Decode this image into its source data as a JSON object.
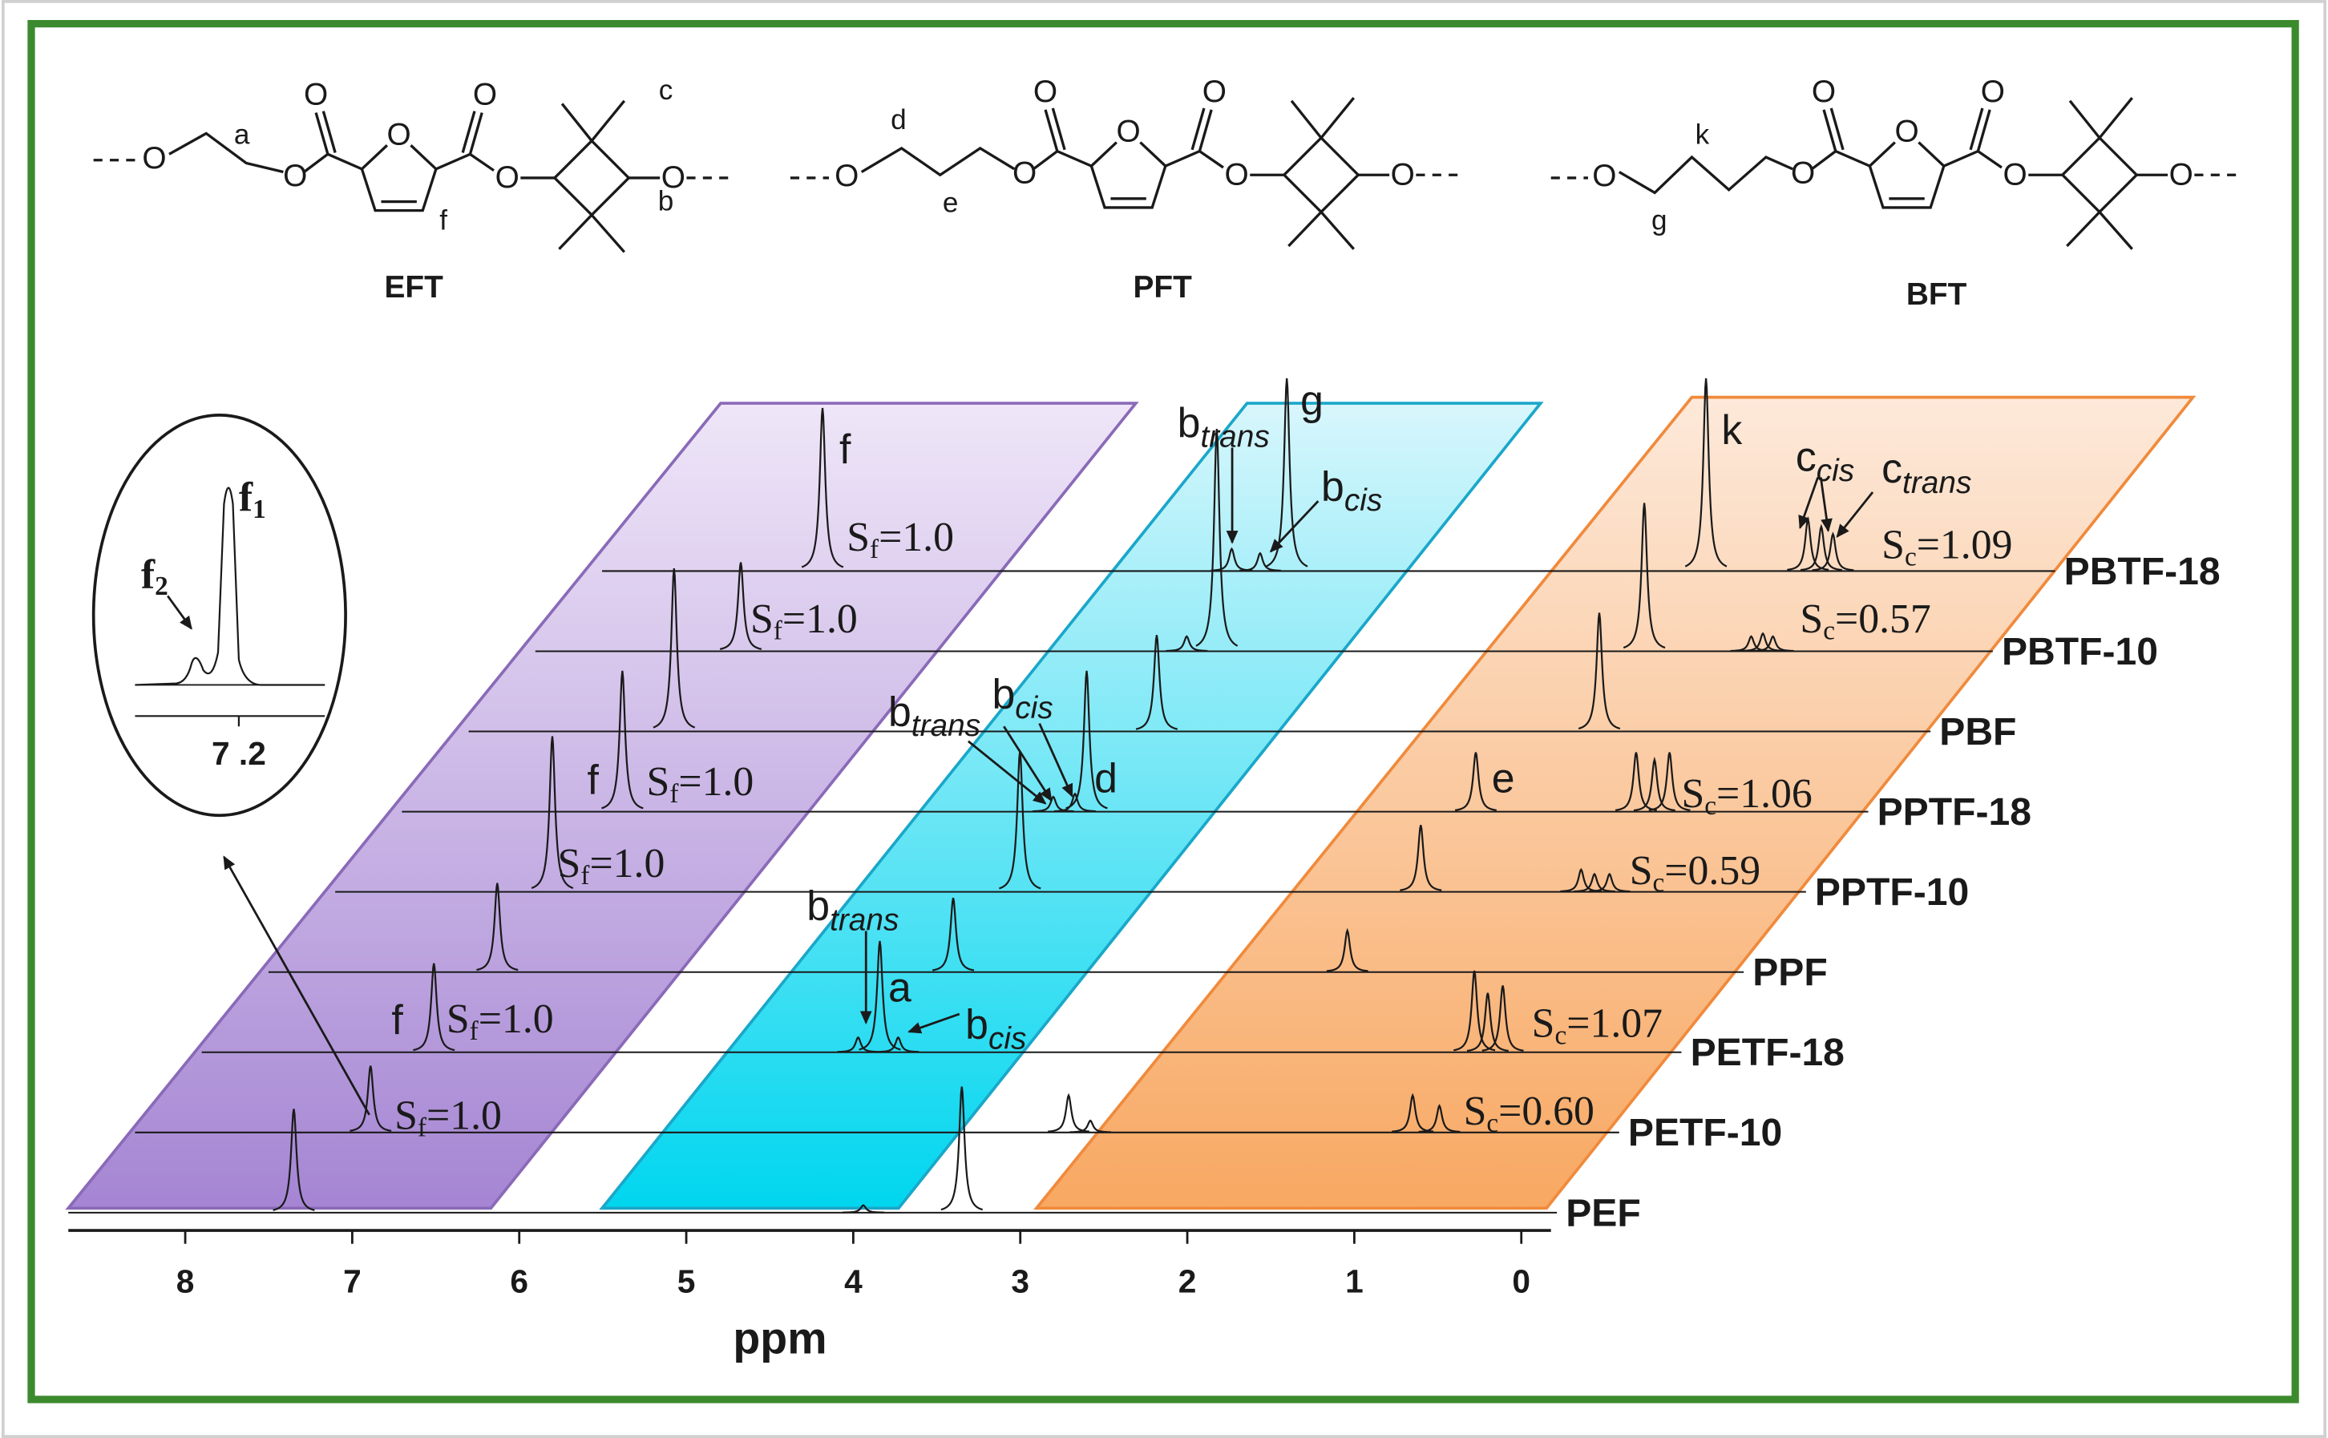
{
  "chart_data": {
    "type": "nmr-stack",
    "xlabel": "ppm",
    "xlim": [
      8.7,
      0
    ],
    "xticks": [
      8,
      7,
      6,
      5,
      4,
      3,
      2,
      1,
      0
    ],
    "series": [
      {
        "name": "PEF",
        "peaks": [
          7.35,
          3.94,
          3.35
        ],
        "intensities": [
          70,
          5,
          85
        ]
      },
      {
        "name": "PETF-10",
        "peaks": [
          7.29,
          3.11,
          2.98,
          1.05,
          0.89
        ],
        "intensities": [
          45,
          25,
          8,
          25,
          18
        ]
      },
      {
        "name": "PETF-18",
        "peaks": [
          7.31,
          4.77,
          4.64,
          4.53,
          1.08,
          1.0,
          0.91
        ],
        "intensities": [
          60,
          10,
          75,
          10,
          55,
          40,
          45
        ]
      },
      {
        "name": "PPF",
        "peaks": [
          7.33,
          4.6,
          2.24
        ],
        "intensities": [
          60,
          50,
          28
        ]
      },
      {
        "name": "PPTF-10",
        "peaks": [
          7.4,
          4.6,
          2.2,
          1.24,
          1.16,
          1.07
        ],
        "intensities": [
          105,
          95,
          45,
          15,
          12,
          12
        ]
      },
      {
        "name": "PPTF-18",
        "peaks": [
          7.38,
          4.8,
          4.67,
          4.6,
          2.27,
          1.31,
          1.2,
          1.11
        ],
        "intensities": [
          95,
          10,
          12,
          95,
          40,
          40,
          35,
          40
        ]
      },
      {
        "name": "PBF",
        "peaks": [
          7.47,
          4.58,
          1.93
        ],
        "intensities": [
          110,
          65,
          80
        ]
      },
      {
        "name": "PBTF-10",
        "peaks": [
          7.47,
          4.8,
          4.62,
          2.06,
          1.42,
          1.35,
          1.29
        ],
        "intensities": [
          60,
          10,
          150,
          100,
          10,
          12,
          10
        ]
      },
      {
        "name": "PBTF-18",
        "peaks": [
          7.38,
          4.93,
          4.76,
          4.6,
          2.09,
          1.48,
          1.4,
          1.33
        ],
        "intensities": [
          110,
          15,
          12,
          130,
          130,
          35,
          30,
          25
        ]
      }
    ],
    "annotations": [
      {
        "text": "f"
      },
      {
        "text": "S",
        "sub": "f",
        "after": "=1.0"
      },
      {
        "text": "S",
        "sub": "f",
        "after": "=1.0"
      },
      {
        "text": "f"
      },
      {
        "text": "S",
        "sub": "f",
        "after": "=1.0"
      },
      {
        "text": "S",
        "sub": "f",
        "after": "=1.0"
      },
      {
        "text": "f"
      },
      {
        "text": "S",
        "sub": "f",
        "after": "=1.0"
      },
      {
        "text": "S",
        "sub": "f",
        "after": "=1.0"
      },
      {
        "text": "b",
        "sub": "trans"
      },
      {
        "text": "g"
      },
      {
        "text": "b",
        "sub": "cis"
      },
      {
        "text": "b",
        "sub": "cis"
      },
      {
        "text": "b",
        "sub": "trans"
      },
      {
        "text": "d"
      },
      {
        "text": "b",
        "sub": "trans"
      },
      {
        "text": "a"
      },
      {
        "text": "b",
        "sub": "cis"
      },
      {
        "text": "k"
      },
      {
        "text": "c",
        "sub": "cis"
      },
      {
        "text": "c",
        "sub": "trans"
      },
      {
        "text": "S",
        "sub": "c",
        "after": "=1.09"
      },
      {
        "text": "S",
        "sub": "c",
        "after": "=0.57"
      },
      {
        "text": "e"
      },
      {
        "text": "S",
        "sub": "c",
        "after": "=1.06"
      },
      {
        "text": "S",
        "sub": "c",
        "after": "=0.59"
      },
      {
        "text": "S",
        "sub": "c",
        "after": "=1.07"
      },
      {
        "text": "S",
        "sub": "c",
        "after": "=0.60"
      }
    ],
    "inset": {
      "labels": [
        {
          "text": "f",
          "sub": "1"
        },
        {
          "text": "f",
          "sub": "2"
        }
      ],
      "tick_label": "7 .2"
    }
  },
  "structures": {
    "oxygen": "O",
    "items": [
      {
        "name": "EFT",
        "labels": [
          "a",
          "f",
          "b",
          "c"
        ]
      },
      {
        "name": "PFT",
        "labels": [
          "d",
          "e"
        ]
      },
      {
        "name": "BFT",
        "labels": [
          "k",
          "g"
        ]
      }
    ]
  }
}
